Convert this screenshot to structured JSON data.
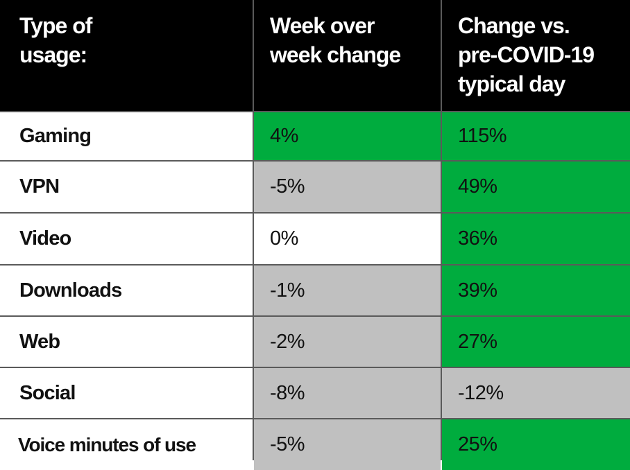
{
  "colors": {
    "header_bg": "#000000",
    "header_text": "#ffffff",
    "increase": "#00ac3e",
    "decrease": "#c0c0c0",
    "neutral": "#ffffff",
    "border": "#5a5a5a"
  },
  "chart_data": {
    "type": "table",
    "columns": [
      "Type of usage:",
      "Week over week change",
      "Change vs. pre-COVID-19 typical day"
    ],
    "header_lines": [
      [
        "Type of",
        "usage:"
      ],
      [
        "Week over",
        "week change"
      ],
      [
        "Change vs.",
        "pre-COVID-19",
        "typical day"
      ]
    ],
    "rows": [
      {
        "label": "Gaming",
        "wow": "4%",
        "wow_status": "increase",
        "vs_pre": "115%",
        "vs_pre_status": "increase"
      },
      {
        "label": "VPN",
        "wow": "-5%",
        "wow_status": "decrease",
        "vs_pre": "49%",
        "vs_pre_status": "increase"
      },
      {
        "label": "Video",
        "wow": "0%",
        "wow_status": "neutral",
        "vs_pre": "36%",
        "vs_pre_status": "increase"
      },
      {
        "label": "Downloads",
        "wow": "-1%",
        "wow_status": "decrease",
        "vs_pre": "39%",
        "vs_pre_status": "increase"
      },
      {
        "label": "Web",
        "wow": "-2%",
        "wow_status": "decrease",
        "vs_pre": "27%",
        "vs_pre_status": "increase"
      },
      {
        "label": "Social",
        "wow": "-8%",
        "wow_status": "decrease",
        "vs_pre": "-12%",
        "vs_pre_status": "decrease"
      },
      {
        "label": "Voice minutes of use",
        "wow": "-5%",
        "wow_status": "decrease",
        "vs_pre": "25%",
        "vs_pre_status": "increase"
      }
    ]
  }
}
